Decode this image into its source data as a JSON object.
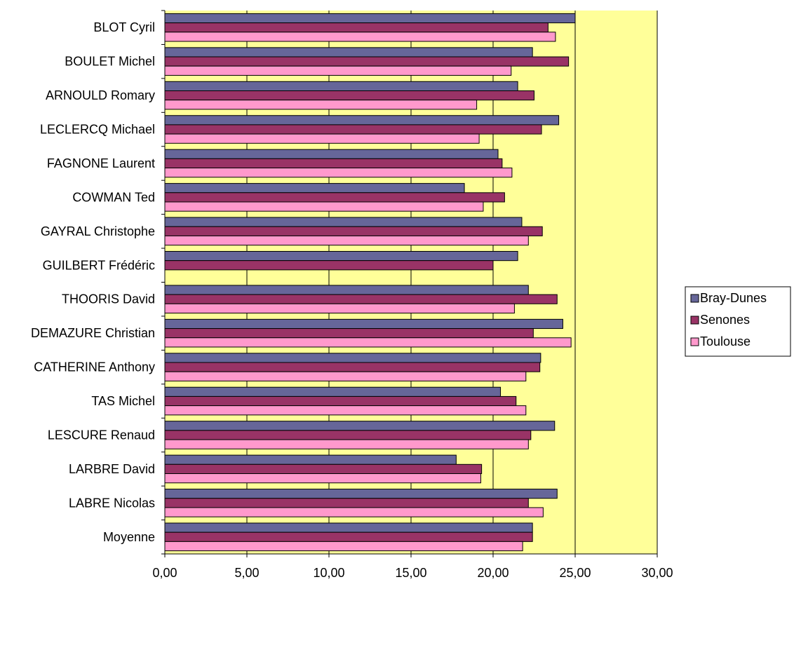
{
  "chart_data": {
    "type": "bar",
    "orientation": "horizontal",
    "categories": [
      "BLOT Cyril",
      "BOULET Michel",
      "ARNOULD Romary",
      "LECLERCQ Michael",
      "FAGNONE Laurent",
      "COWMAN Ted",
      "GAYRAL Christophe",
      "GUILBERT Frédéric",
      "THOORIS David",
      "DEMAZURE Christian",
      "CATHERINE Anthony",
      "TAS Michel",
      "LESCURE Renaud",
      "LARBRE David",
      "LABRE Nicolas",
      "Moyenne"
    ],
    "series": [
      {
        "name": "Bray-Dunes",
        "color": "#666699",
        "values": [
          25.0,
          22.4,
          21.5,
          24.0,
          20.3,
          18.25,
          21.75,
          21.5,
          22.15,
          24.25,
          22.9,
          20.45,
          23.75,
          17.75,
          23.9,
          22.4
        ]
      },
      {
        "name": "Senones",
        "color": "#993366",
        "values": [
          23.35,
          24.6,
          22.5,
          22.95,
          20.55,
          20.7,
          23.0,
          20.0,
          23.9,
          22.45,
          22.85,
          21.4,
          22.3,
          19.3,
          22.15,
          22.4
        ]
      },
      {
        "name": "Toulouse",
        "color": "#ff99cc",
        "values": [
          23.8,
          21.1,
          19.0,
          19.15,
          21.15,
          19.4,
          22.15,
          null,
          21.3,
          24.75,
          22.0,
          22.0,
          22.15,
          19.25,
          23.05,
          21.8
        ]
      }
    ],
    "xlim": [
      0,
      30
    ],
    "x_ticks": [
      "0,00",
      "5,00",
      "10,00",
      "15,00",
      "20,00",
      "25,00",
      "30,00"
    ],
    "grid": "vertical major gridlines",
    "plot_background": "#ffff99",
    "legend": {
      "position": "right",
      "entries": [
        "Bray-Dunes",
        "Senones",
        "Toulouse"
      ]
    },
    "title": "",
    "xlabel": "",
    "ylabel": ""
  }
}
